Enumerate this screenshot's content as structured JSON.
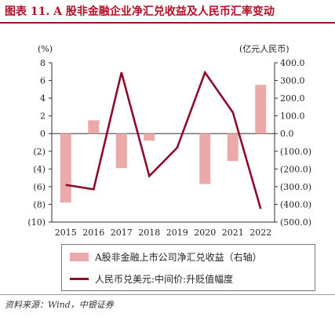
{
  "figure_title": "图表 11. A 股非金融企业净汇兑收益及人民币汇率变动",
  "source_note": "资料来源：Wind，中银证券",
  "chart_data": {
    "type": "bar",
    "categories": [
      "2015",
      "2016",
      "2017",
      "2018",
      "2019",
      "2020",
      "2021",
      "2022"
    ],
    "left_axis": {
      "unit_label": "(%)",
      "ylim": [
        -10,
        8
      ],
      "ticks": [
        8,
        6,
        4,
        2,
        0,
        -2,
        -4,
        -6,
        -8,
        -10
      ],
      "tick_labels": [
        "8",
        "6",
        "4",
        "2",
        "0",
        "(2)",
        "(4)",
        "(6)",
        "(8)",
        "(10)"
      ]
    },
    "right_axis": {
      "unit_label": "(亿元人民币)",
      "ylim": [
        -500,
        400
      ],
      "ticks": [
        400,
        300,
        200,
        100,
        0,
        -100,
        -200,
        -300,
        -400,
        -500
      ],
      "tick_labels": [
        "400.0",
        "300.0",
        "200.0",
        "100.0",
        "0.0",
        "(100.0)",
        "(200.0)",
        "(300.0)",
        "(400.0)",
        "(500.0)"
      ]
    },
    "grid": false,
    "legend_position": "bottom",
    "series": [
      {
        "name": "A股非金融上市公司净汇兑收益（右轴）",
        "type": "bar",
        "axis": "right",
        "color": "#eba9a9",
        "values": [
          -390,
          75,
          -195,
          -40,
          0,
          -285,
          -155,
          275
        ]
      },
      {
        "name": "人民币兑美元:中间价:升贬值幅度",
        "type": "line",
        "axis": "left",
        "color": "#8b0d2a",
        "values": [
          -5.8,
          -6.3,
          6.9,
          -4.8,
          -1.6,
          6.9,
          2.4,
          -8.5
        ]
      }
    ]
  }
}
